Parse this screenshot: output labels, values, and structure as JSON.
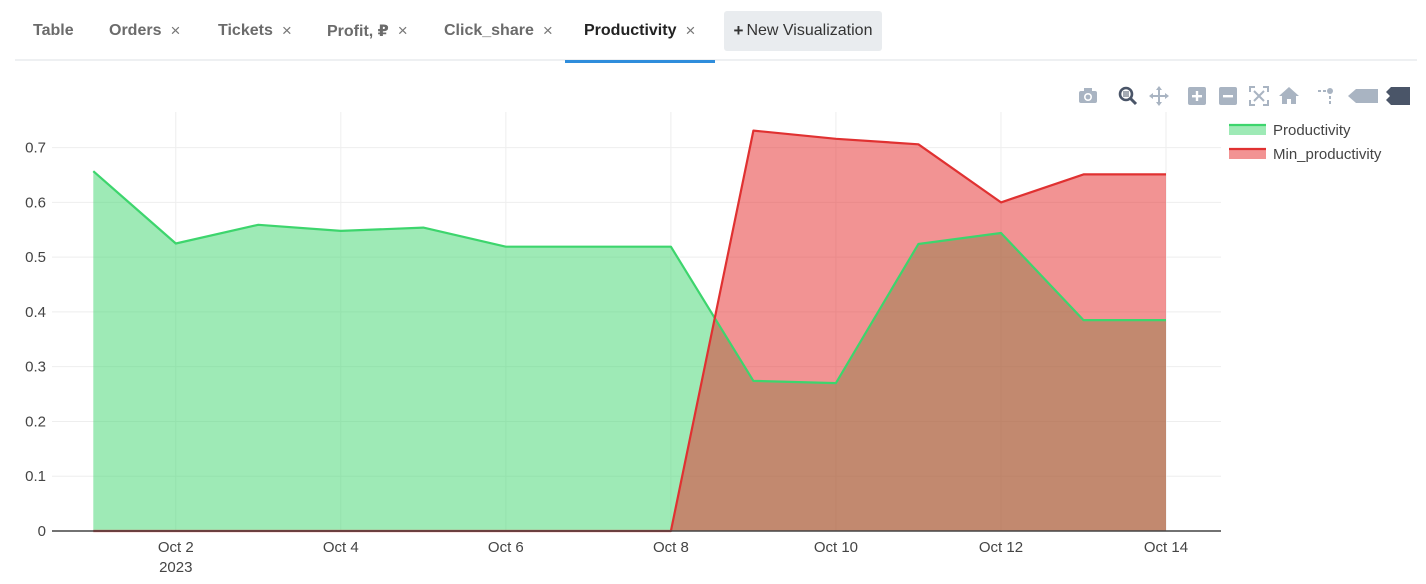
{
  "tabs": [
    {
      "label": "Table",
      "closable": false,
      "active": false
    },
    {
      "label": "Orders",
      "closable": true,
      "active": false
    },
    {
      "label": "Tickets",
      "closable": true,
      "active": false
    },
    {
      "label": "Profit, ₽",
      "closable": true,
      "active": false
    },
    {
      "label": "Click_share",
      "closable": true,
      "active": false
    },
    {
      "label": "Productivity",
      "closable": true,
      "active": true
    }
  ],
  "close_glyph": "×",
  "new_visualization": {
    "plus": "+",
    "label": "New Visualization"
  },
  "modebar": [
    "camera-icon",
    "zoom-icon",
    "pan-icon",
    "zoom-in-icon",
    "zoom-out-icon",
    "autoscale-icon",
    "reset-axes-icon",
    "spike-lines-icon",
    "hover-closest-icon",
    "hover-compare-icon"
  ],
  "chart_data": {
    "type": "area",
    "x_dates": [
      "2023-10-01",
      "2023-10-02",
      "2023-10-03",
      "2023-10-04",
      "2023-10-05",
      "2023-10-06",
      "2023-10-07",
      "2023-10-08",
      "2023-10-09",
      "2023-10-10",
      "2023-10-11",
      "2023-10-12",
      "2023-10-13",
      "2023-10-14"
    ],
    "x_ticks": [
      {
        "date": "2023-10-02",
        "label": "Oct 2",
        "sub": "2023"
      },
      {
        "date": "2023-10-04",
        "label": "Oct 4",
        "sub": ""
      },
      {
        "date": "2023-10-06",
        "label": "Oct 6",
        "sub": ""
      },
      {
        "date": "2023-10-08",
        "label": "Oct 8",
        "sub": ""
      },
      {
        "date": "2023-10-10",
        "label": "Oct 10",
        "sub": ""
      },
      {
        "date": "2023-10-12",
        "label": "Oct 12",
        "sub": ""
      },
      {
        "date": "2023-10-14",
        "label": "Oct 14",
        "sub": ""
      }
    ],
    "y_ticks": [
      {
        "value": 0,
        "label": "0"
      },
      {
        "value": 0.1,
        "label": "0.1"
      },
      {
        "value": 0.2,
        "label": "0.2"
      },
      {
        "value": 0.3,
        "label": "0.3"
      },
      {
        "value": 0.4,
        "label": "0.4"
      },
      {
        "value": 0.5,
        "label": "0.5"
      },
      {
        "value": 0.6,
        "label": "0.6"
      },
      {
        "value": 0.7,
        "label": "0.7"
      }
    ],
    "ylim": [
      0,
      0.765
    ],
    "xlim": [
      "2023-09-30T12:00",
      "2023-10-14T16:00"
    ],
    "grid": true,
    "legend_position": "top-right",
    "series": [
      {
        "name": "Productivity",
        "color": "#3dd56d",
        "fill": "rgba(61,213,109,0.5)",
        "values": [
          0.657,
          0.525,
          0.559,
          0.548,
          0.554,
          0.519,
          0.519,
          0.519,
          0.274,
          0.27,
          0.524,
          0.544,
          0.385,
          0.385
        ]
      },
      {
        "name": "Min_productivity",
        "color": "#e03131",
        "fill": "rgba(230,40,40,0.5)",
        "values": [
          0,
          0,
          0,
          0,
          0,
          0,
          0,
          0,
          0.731,
          0.716,
          0.706,
          0.6,
          0.651,
          0.651
        ]
      }
    ]
  }
}
